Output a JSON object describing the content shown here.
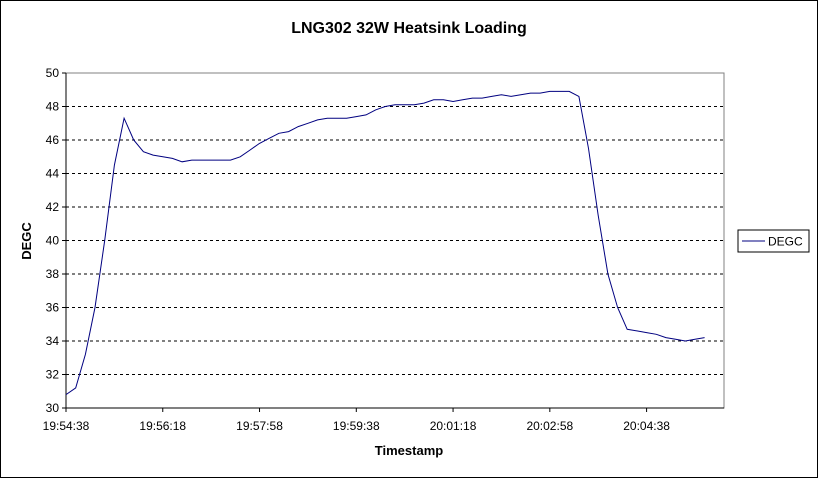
{
  "chart_data": {
    "type": "line",
    "title": "LNG302 32W Heatsink Loading",
    "xlabel": "Timestamp",
    "ylabel": "DEGC",
    "ylim": [
      30,
      50
    ],
    "yticks": [
      30,
      32,
      34,
      36,
      38,
      40,
      42,
      44,
      46,
      48,
      50
    ],
    "xlim": [
      "19:54:38",
      "20:05:58"
    ],
    "xticks": [
      "19:54:38",
      "19:56:18",
      "19:57:58",
      "19:59:38",
      "20:01:18",
      "20:02:58",
      "20:04:38"
    ],
    "grid": "horizontal dashed",
    "legend_position": "right",
    "series": [
      {
        "name": "DEGC",
        "color": "#000080",
        "x": [
          "19:54:38",
          "19:54:48",
          "19:54:58",
          "19:55:08",
          "19:55:18",
          "19:55:28",
          "19:55:38",
          "19:55:48",
          "19:55:58",
          "19:56:08",
          "19:56:18",
          "19:56:28",
          "19:56:38",
          "19:56:48",
          "19:56:58",
          "19:57:08",
          "19:57:18",
          "19:57:28",
          "19:57:38",
          "19:57:48",
          "19:57:58",
          "19:58:08",
          "19:58:18",
          "19:58:28",
          "19:58:38",
          "19:58:48",
          "19:58:58",
          "19:59:08",
          "19:59:18",
          "19:59:28",
          "19:59:38",
          "19:59:48",
          "19:59:58",
          "20:00:08",
          "20:00:18",
          "20:00:28",
          "20:00:38",
          "20:00:48",
          "20:00:58",
          "20:01:08",
          "20:01:18",
          "20:01:28",
          "20:01:38",
          "20:01:48",
          "20:01:58",
          "20:02:08",
          "20:02:18",
          "20:02:28",
          "20:02:38",
          "20:02:48",
          "20:02:58",
          "20:03:08",
          "20:03:18",
          "20:03:28",
          "20:03:38",
          "20:03:48",
          "20:03:58",
          "20:04:08",
          "20:04:18",
          "20:04:28",
          "20:04:38",
          "20:04:48",
          "20:04:58",
          "20:05:08",
          "20:05:18",
          "20:05:28",
          "20:05:38"
        ],
        "values": [
          30.8,
          31.2,
          33.2,
          36.0,
          40.0,
          44.5,
          47.3,
          46.0,
          45.3,
          45.1,
          45.0,
          44.9,
          44.7,
          44.8,
          44.8,
          44.8,
          44.8,
          44.8,
          45.0,
          45.4,
          45.8,
          46.1,
          46.4,
          46.5,
          46.8,
          47.0,
          47.2,
          47.3,
          47.3,
          47.3,
          47.4,
          47.5,
          47.8,
          48.0,
          48.1,
          48.1,
          48.1,
          48.2,
          48.4,
          48.4,
          48.3,
          48.4,
          48.5,
          48.5,
          48.6,
          48.7,
          48.6,
          48.7,
          48.8,
          48.8,
          48.9,
          48.9,
          48.9,
          48.6,
          45.5,
          41.5,
          38.0,
          36.0,
          34.7,
          34.6,
          34.5,
          34.4,
          34.2,
          34.1,
          34.0,
          34.1,
          34.2
        ]
      }
    ]
  }
}
